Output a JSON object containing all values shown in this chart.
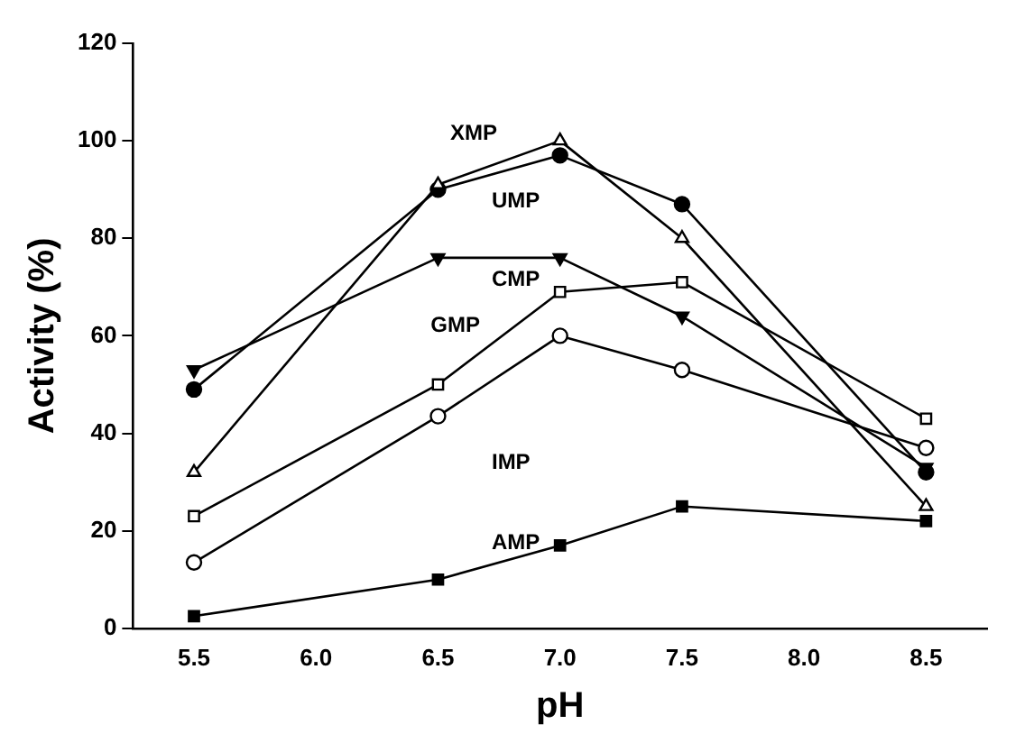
{
  "chart_data": {
    "type": "line",
    "xlabel": "pH",
    "ylabel": "Activity (%)",
    "x": [
      5.5,
      6.5,
      7.0,
      7.5,
      8.5
    ],
    "xlim": [
      5.25,
      8.75
    ],
    "xticks": [
      5.5,
      {
        "value": 6,
        "label": "6.0"
      },
      6.5,
      {
        "value": 7,
        "label": "7.0"
      },
      7.5,
      {
        "value": 8,
        "label": "8.0"
      },
      8.5
    ],
    "ylim": [
      0,
      120
    ],
    "yticks": [
      0,
      20,
      40,
      60,
      80,
      100,
      120
    ],
    "grid": false,
    "legend": false,
    "series": [
      {
        "name": "XMP",
        "color": "#000000",
        "marker": "triangle-open",
        "values": [
          32,
          91,
          100,
          80,
          25
        ]
      },
      {
        "name": "UMP",
        "color": "#000000",
        "marker": "circle",
        "values": [
          49,
          90,
          97,
          87,
          32
        ]
      },
      {
        "name": "CMP",
        "color": "#000000",
        "marker": "triangle-down",
        "values": [
          53,
          76,
          76,
          64,
          33
        ]
      },
      {
        "name": "GMP",
        "color": "#000000",
        "marker": "square-open",
        "values": [
          23,
          50,
          69,
          71,
          43
        ]
      },
      {
        "name": "IMP",
        "color": "#000000",
        "marker": "circle-open",
        "values": [
          13.5,
          43.5,
          60,
          53,
          37
        ]
      },
      {
        "name": "AMP",
        "color": "#000000",
        "marker": "square",
        "values": [
          2.5,
          10,
          17,
          25,
          22
        ]
      }
    ]
  }
}
